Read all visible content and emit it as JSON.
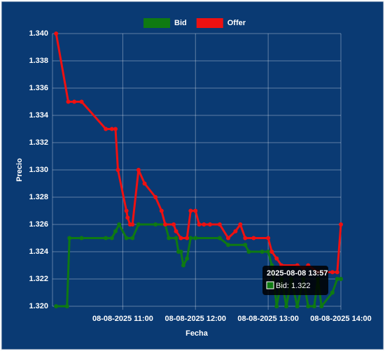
{
  "chart_data": {
    "type": "line",
    "x_label": "Fecha",
    "y_label": "Precio",
    "xlim": [
      "2025-08-08 10:02",
      "2025-08-08 14:00"
    ],
    "xticks": [
      {
        "value": "2025-08-08 11:00",
        "label": "08-08-2025 11:00"
      },
      {
        "value": "2025-08-08 12:00",
        "label": "08-08-2025 12:00"
      },
      {
        "value": "2025-08-08 13:00",
        "label": "08-08-2025 13:00"
      },
      {
        "value": "2025-08-08 14:00",
        "label": "08-08-2025 14:00"
      }
    ],
    "ylim": [
      1.32,
      1.34
    ],
    "yticks": [
      {
        "value": 1.32,
        "label": "1.320"
      },
      {
        "value": 1.322,
        "label": "1.322"
      },
      {
        "value": 1.324,
        "label": "1.324"
      },
      {
        "value": 1.326,
        "label": "1.326"
      },
      {
        "value": 1.328,
        "label": "1.328"
      },
      {
        "value": 1.33,
        "label": "1.330"
      },
      {
        "value": 1.332,
        "label": "1.332"
      },
      {
        "value": 1.334,
        "label": "1.334"
      },
      {
        "value": 1.336,
        "label": "1.336"
      },
      {
        "value": 1.338,
        "label": "1.338"
      },
      {
        "value": 1.34,
        "label": "1.340"
      }
    ],
    "grid": true,
    "legend": "top",
    "series": [
      {
        "name": "Bid",
        "color": "#0f7a12",
        "x": [
          "2025-08-08 10:05",
          "2025-08-08 10:14",
          "2025-08-08 10:16",
          "2025-08-08 10:26",
          "2025-08-08 10:46",
          "2025-08-08 10:51",
          "2025-08-08 10:54",
          "2025-08-08 10:57",
          "2025-08-08 11:03",
          "2025-08-08 11:08",
          "2025-08-08 11:13",
          "2025-08-08 11:27",
          "2025-08-08 11:35",
          "2025-08-08 11:38",
          "2025-08-08 11:44",
          "2025-08-08 11:46",
          "2025-08-08 11:48",
          "2025-08-08 11:50",
          "2025-08-08 11:53",
          "2025-08-08 11:56",
          "2025-08-08 12:00",
          "2025-08-08 12:20",
          "2025-08-08 12:27",
          "2025-08-08 12:41",
          "2025-08-08 12:44",
          "2025-08-08 12:55",
          "2025-08-08 13:00",
          "2025-08-08 13:03",
          "2025-08-08 13:07",
          "2025-08-08 13:11",
          "2025-08-08 13:15",
          "2025-08-08 13:19",
          "2025-08-08 13:24",
          "2025-08-08 13:29",
          "2025-08-08 13:33",
          "2025-08-08 13:38",
          "2025-08-08 13:41",
          "2025-08-08 13:44",
          "2025-08-08 13:53",
          "2025-08-08 13:57",
          "2025-08-08 14:00"
        ],
        "values": [
          1.32,
          1.32,
          1.325,
          1.325,
          1.325,
          1.325,
          1.3255,
          1.326,
          1.325,
          1.325,
          1.326,
          1.326,
          1.326,
          1.325,
          1.325,
          1.324,
          1.324,
          1.323,
          1.3235,
          1.325,
          1.325,
          1.325,
          1.3245,
          1.3245,
          1.324,
          1.324,
          1.324,
          1.323,
          1.32,
          1.322,
          1.32,
          1.322,
          1.32,
          1.322,
          1.32,
          1.32,
          1.322,
          1.32,
          1.321,
          1.322,
          1.322
        ]
      },
      {
        "name": "Offer",
        "color": "#ee1111",
        "x": [
          "2025-08-08 10:05",
          "2025-08-08 10:15",
          "2025-08-08 10:20",
          "2025-08-08 10:26",
          "2025-08-08 10:46",
          "2025-08-08 10:51",
          "2025-08-08 10:54",
          "2025-08-08 10:56",
          "2025-08-08 11:03",
          "2025-08-08 11:04",
          "2025-08-08 11:06",
          "2025-08-08 11:08",
          "2025-08-08 11:13",
          "2025-08-08 11:18",
          "2025-08-08 11:27",
          "2025-08-08 11:32",
          "2025-08-08 11:35",
          "2025-08-08 11:42",
          "2025-08-08 11:44",
          "2025-08-08 11:48",
          "2025-08-08 11:53",
          "2025-08-08 11:56",
          "2025-08-08 12:00",
          "2025-08-08 12:03",
          "2025-08-08 12:07",
          "2025-08-08 12:12",
          "2025-08-08 12:20",
          "2025-08-08 12:27",
          "2025-08-08 12:33",
          "2025-08-08 12:37",
          "2025-08-08 12:41",
          "2025-08-08 12:48",
          "2025-08-08 13:00",
          "2025-08-08 13:03",
          "2025-08-08 13:07",
          "2025-08-08 13:11",
          "2025-08-08 13:24",
          "2025-08-08 13:29",
          "2025-08-08 13:33",
          "2025-08-08 13:41",
          "2025-08-08 13:53",
          "2025-08-08 13:57",
          "2025-08-08 14:00"
        ],
        "values": [
          1.34,
          1.335,
          1.335,
          1.335,
          1.333,
          1.333,
          1.333,
          1.33,
          1.327,
          1.3265,
          1.326,
          1.326,
          1.33,
          1.329,
          1.328,
          1.327,
          1.326,
          1.326,
          1.3255,
          1.325,
          1.325,
          1.327,
          1.327,
          1.326,
          1.326,
          1.326,
          1.326,
          1.325,
          1.3255,
          1.326,
          1.325,
          1.325,
          1.325,
          1.324,
          1.3235,
          1.323,
          1.323,
          1.3228,
          1.323,
          1.3225,
          1.3225,
          1.3225,
          1.326
        ]
      }
    ],
    "tooltip": {
      "title": "2025-08-08 13:57",
      "label": "Bid: 1.322"
    }
  }
}
